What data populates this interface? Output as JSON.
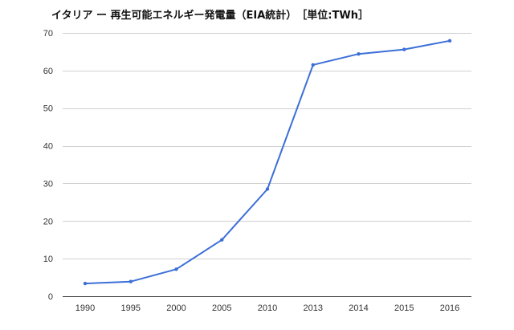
{
  "colors": {
    "line": "#3c6fd8",
    "grid": "#d0d0d0",
    "axis": "#333333",
    "text": "#333333",
    "title": "#111111",
    "background": "#ffffff"
  },
  "chart_data": {
    "type": "line",
    "title": "イタリア ー 再生可能エネルギー発電量（EIA統計）　［単位:TWh］",
    "xlabel": "",
    "ylabel": "",
    "categories": [
      "1990",
      "1995",
      "2000",
      "2005",
      "2010",
      "2013",
      "2014",
      "2015",
      "2016"
    ],
    "series": [
      {
        "name": "再生可能エネルギー発電量",
        "values": [
          3.4,
          3.9,
          7.2,
          15.0,
          28.5,
          61.5,
          64.4,
          65.6,
          67.9
        ]
      }
    ],
    "ylim": [
      0,
      70
    ],
    "yticks": [
      "0",
      "10",
      "20",
      "30",
      "40",
      "50",
      "60",
      "70"
    ],
    "grid": true,
    "legend": "none"
  }
}
